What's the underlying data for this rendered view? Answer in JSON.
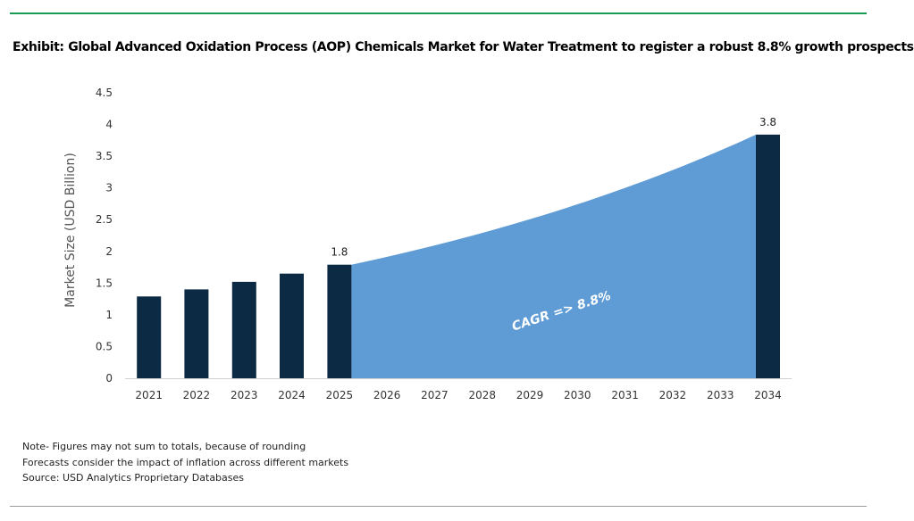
{
  "title": "Exhibit: Global Advanced Oxidation Process (AOP) Chemicals Market for Water Treatment to register a robust 8.8% growth prospects",
  "notes": [
    "Note- Figures may not sum to totals, because of rounding",
    "Forecasts consider the impact of inflation across different markets",
    "Source: USD Analytics Proprietary Databases"
  ],
  "colors": {
    "bar": "#0d2a45",
    "area": "#5f9bd4",
    "axis_text": "#333333",
    "rule_top": "#1a9a52"
  },
  "chart_data": {
    "type": "bar",
    "title": "Exhibit: Global Advanced Oxidation Process (AOP) Chemicals Market for Water Treatment to register a robust 8.8% growth prospects",
    "xlabel": "",
    "ylabel": "Market Size (USD Billion)",
    "ylim": [
      0,
      4.5
    ],
    "yticks": [
      "0",
      "0.5",
      "1",
      "1.5",
      "2",
      "2.5",
      "3",
      "3.5",
      "4",
      "4.5"
    ],
    "categories": [
      "2021",
      "2022",
      "2023",
      "2024",
      "2025",
      "2026",
      "2027",
      "2028",
      "2029",
      "2030",
      "2031",
      "2032",
      "2033",
      "2034"
    ],
    "bars": [
      {
        "year": "2021",
        "value": 1.29
      },
      {
        "year": "2022",
        "value": 1.4
      },
      {
        "year": "2023",
        "value": 1.52
      },
      {
        "year": "2024",
        "value": 1.65
      },
      {
        "year": "2025",
        "value": 1.79,
        "label": "1.8"
      },
      {
        "year": "2034",
        "value": 3.84,
        "label": "3.8"
      }
    ],
    "area": {
      "from": "2025",
      "to": "2034",
      "start_value": 1.79,
      "growth_rate": 0.088,
      "label": "CAGR => 8.8%"
    },
    "grid": false,
    "legend": "none"
  }
}
